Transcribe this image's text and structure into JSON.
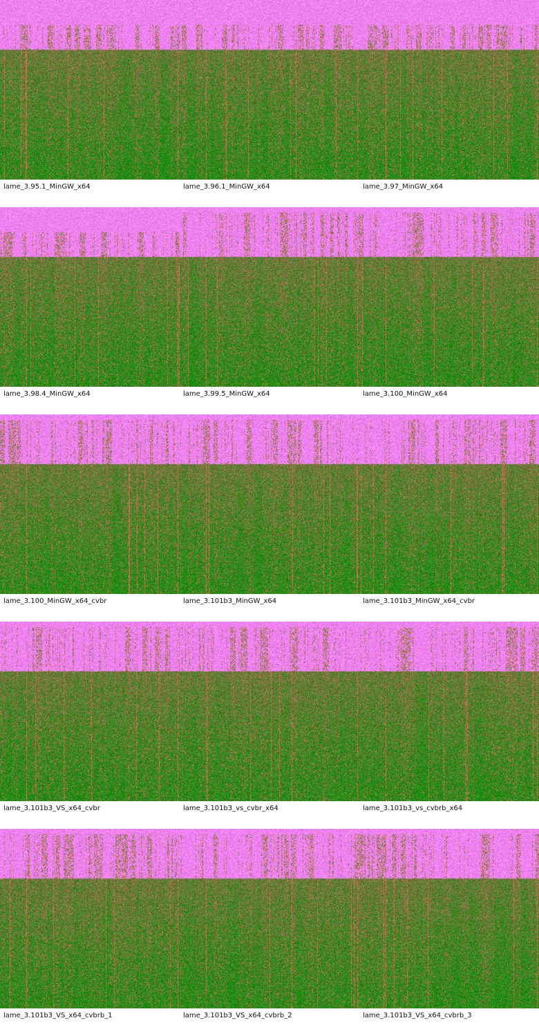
{
  "colors": {
    "high_band": "#ee82ee",
    "low_band": "#1f8c12",
    "mid_band": "#6a7a3a",
    "transient": "#c8704f"
  },
  "panels": [
    {
      "label": "lame_3.95.1_MinGW_x64",
      "cutoff": "low",
      "seed": 11
    },
    {
      "label": "lame_3.96.1_MinGW_x64",
      "cutoff": "low",
      "seed": 23
    },
    {
      "label": "lame_3.97_MinGW_x64",
      "cutoff": "low2",
      "seed": 37
    },
    {
      "label": "lame_3.98.4_MinGW_x64",
      "cutoff": "low2",
      "seed": 41
    },
    {
      "label": "lame_3.99.5_MinGW_x64",
      "cutoff": "high",
      "seed": 53
    },
    {
      "label": "lame_3.100_MinGW_x64",
      "cutoff": "high",
      "seed": 67
    },
    {
      "label": "lame_3.100_MinGW_x64_cvbr",
      "cutoff": "mid",
      "seed": 71
    },
    {
      "label": "lame_3.101b3_MinGW_x64",
      "cutoff": "mid",
      "seed": 83
    },
    {
      "label": "lame_3.101b3_MinGW_x64_cvbr",
      "cutoff": "mid",
      "seed": 97
    },
    {
      "label": "lame_3.101b3_VS_x64_cvbr",
      "cutoff": "mid",
      "seed": 101
    },
    {
      "label": "lame_3.101b3_vs_cvbr_x64",
      "cutoff": "mid",
      "seed": 113
    },
    {
      "label": "lame_3.101b3_vs_cvbrb_x64",
      "cutoff": "mid",
      "seed": 127
    },
    {
      "label": "lame_3.101b3_VS_x64_cvbrb_1",
      "cutoff": "mid",
      "seed": 131
    },
    {
      "label": "lame_3.101b3_VS_x64_cvbrb_2",
      "cutoff": "mid",
      "seed": 149
    },
    {
      "label": "lame_3.101b3_VS_x64_cvbrb_3",
      "cutoff": "mid",
      "seed": 157
    }
  ]
}
